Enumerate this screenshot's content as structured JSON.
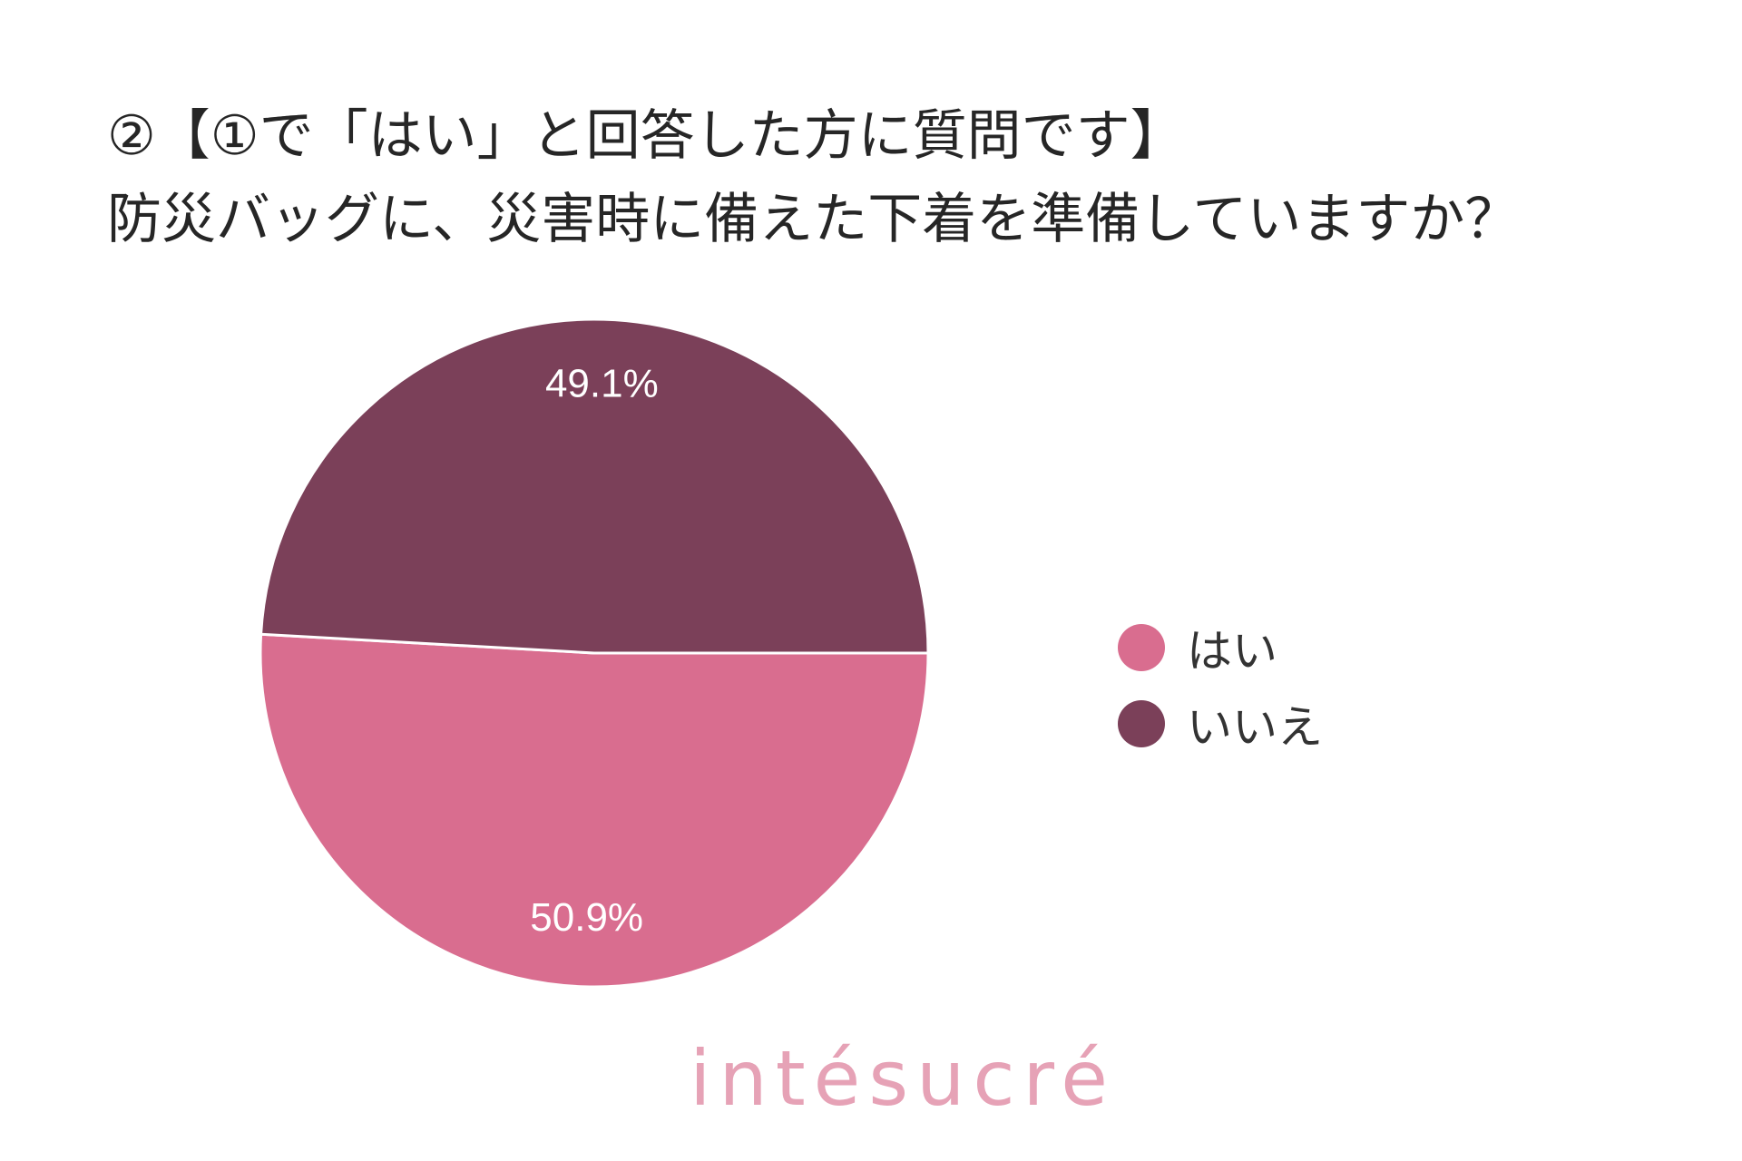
{
  "chart_data": {
    "type": "pie",
    "title": [
      "②【①で「はい」と回答した方に質問です】",
      "防災バッグに、災害時に備えた下着を準備していますか？"
    ],
    "categories": [
      "はい",
      "いいえ"
    ],
    "values": [
      50.9,
      49.1
    ],
    "value_labels": [
      "50.9%",
      "49.1%"
    ],
    "colors": [
      "#d96d8f",
      "#7b4059"
    ],
    "legend_position": "right"
  },
  "brand": {
    "text": "intésucré",
    "color": "#e6a2b6"
  }
}
